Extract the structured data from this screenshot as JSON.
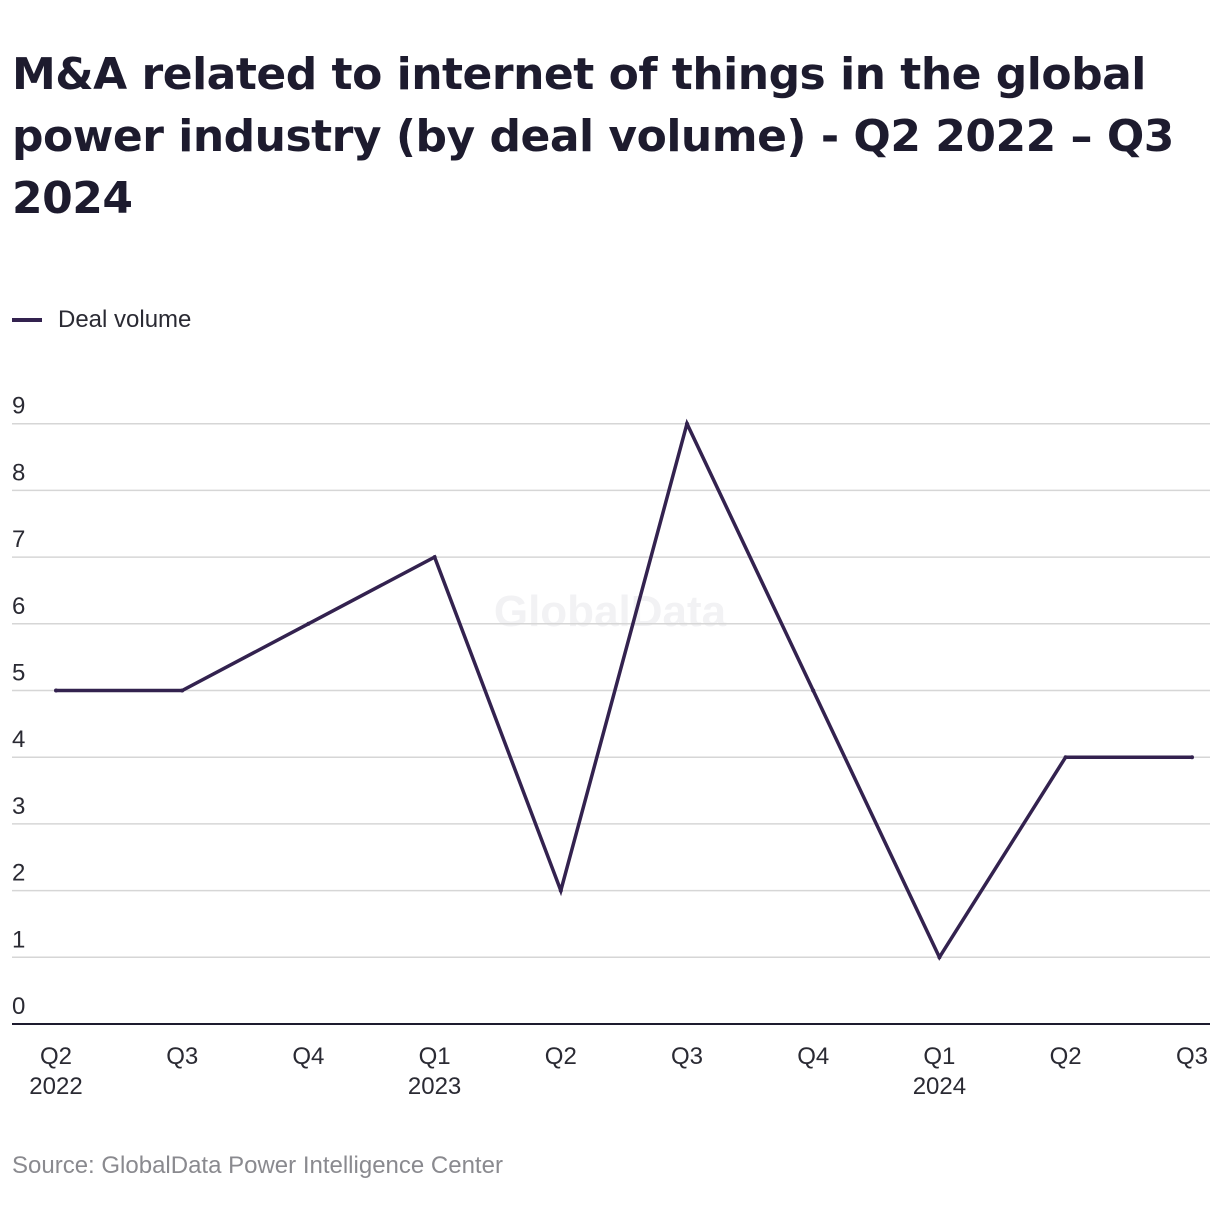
{
  "title": "M&A related to internet of things in the global power industry (by deal volume) - Q2 2022 – Q3 2024",
  "source": "Source: GlobalData Power Intelligence Center",
  "watermark": "GlobalData",
  "colors": {
    "line": "#33224f",
    "grid": "#d6d6d6",
    "axis": "#1d1b2e",
    "text": "#2a2a33",
    "muted": "#8a8a8f"
  },
  "chart_data": {
    "type": "line",
    "title": "M&A related to internet of things in the global power industry (by deal volume) - Q2 2022 – Q3 2024",
    "categories": [
      "Q2 2022",
      "Q3 2022",
      "Q4 2022",
      "Q1 2023",
      "Q2 2023",
      "Q3 2023",
      "Q4 2023",
      "Q1 2024",
      "Q2 2024",
      "Q3 2024"
    ],
    "tick_labels": [
      [
        "Q2",
        "2022"
      ],
      [
        "Q3"
      ],
      [
        "Q4"
      ],
      [
        "Q1",
        "2023"
      ],
      [
        "Q2"
      ],
      [
        "Q3"
      ],
      [
        "Q4"
      ],
      [
        "Q1",
        "2024"
      ],
      [
        "Q2"
      ],
      [
        "Q3"
      ]
    ],
    "series": [
      {
        "name": "Deal volume",
        "values": [
          5,
          5,
          6,
          7,
          2,
          9,
          5,
          1,
          4,
          4
        ]
      }
    ],
    "ylim": [
      0,
      9
    ],
    "yticks": [
      0,
      1,
      2,
      3,
      4,
      5,
      6,
      7,
      8,
      9
    ],
    "xlabel": "",
    "ylabel": "",
    "grid": true,
    "legend": "top-left"
  }
}
